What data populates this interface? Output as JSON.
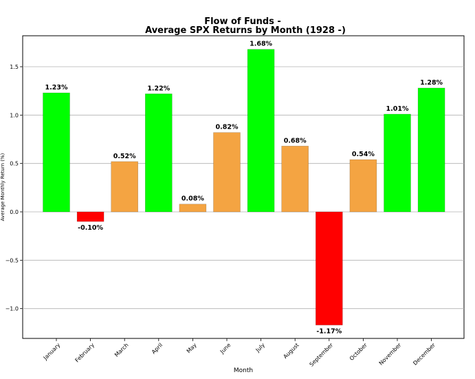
{
  "chart_data": {
    "type": "bar",
    "title_line1": "Flow of Funds -",
    "title_line2": "Average SPX Returns by Month (1928 -)",
    "xlabel": "Month",
    "ylabel": "Average Monthly Return (%)",
    "ylim": [
      -1.3,
      1.8
    ],
    "yticks": [
      -1.0,
      -0.5,
      0.0,
      0.5,
      1.0,
      1.5
    ],
    "ytick_labels": [
      "−1.0",
      "−0.5",
      "0.0",
      "0.5",
      "1.0",
      "1.5"
    ],
    "grid": "horizontal",
    "categories": [
      "January",
      "February",
      "March",
      "April",
      "May",
      "June",
      "July",
      "August",
      "September",
      "October",
      "November",
      "December"
    ],
    "values": [
      1.23,
      -0.1,
      0.52,
      1.22,
      0.08,
      0.82,
      1.68,
      0.68,
      -1.17,
      0.54,
      1.01,
      1.28
    ],
    "data_labels": [
      "1.23%",
      "-0.10%",
      "0.52%",
      "1.22%",
      "0.08%",
      "0.82%",
      "1.68%",
      "0.68%",
      "-1.17%",
      "0.54%",
      "1.01%",
      "1.28%"
    ],
    "bar_colors": [
      "#00ff00",
      "#ff0000",
      "#f4a442",
      "#00ff00",
      "#f4a442",
      "#f4a442",
      "#00ff00",
      "#f4a442",
      "#ff0000",
      "#f4a442",
      "#00ff00",
      "#00ff00"
    ]
  }
}
